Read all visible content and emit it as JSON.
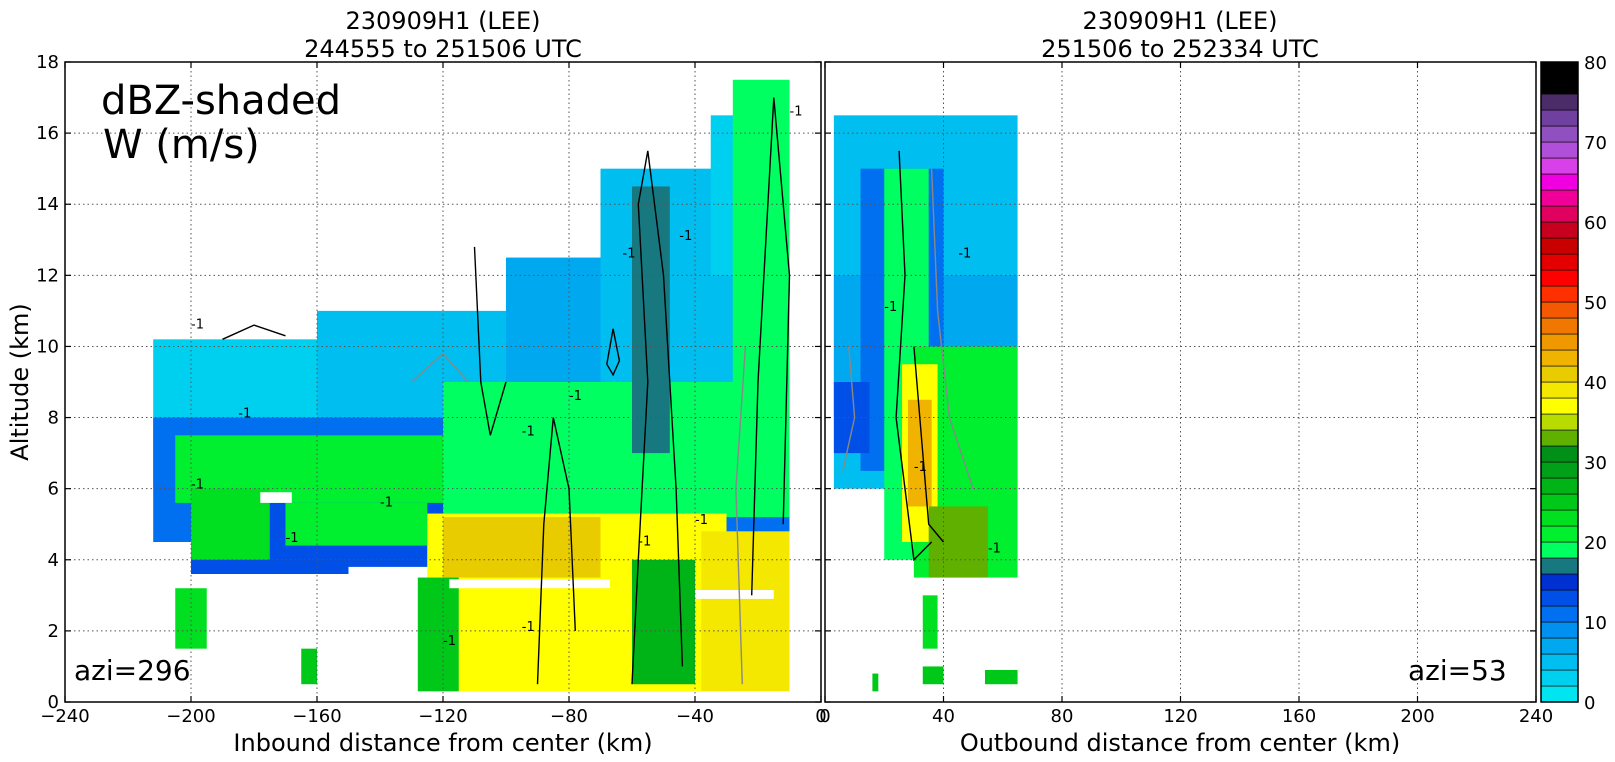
{
  "chart_data": [
    {
      "type": "heatmap",
      "title_line1": "230909H1 (LEE)",
      "title_line2": "244555 to 251506 UTC",
      "xlabel": "Inbound distance from center (km)",
      "ylabel": "Altitude (km)",
      "xlim": [
        -240,
        0
      ],
      "ylim": [
        0,
        18
      ],
      "xticks": [
        "−240",
        "−200",
        "−160",
        "−120",
        "−80",
        "−40",
        "0"
      ],
      "xtick_values": [
        -240,
        -200,
        -160,
        -120,
        -80,
        -40,
        0
      ],
      "yticks": [
        "0",
        "2",
        "4",
        "6",
        "8",
        "10",
        "12",
        "14",
        "16",
        "18"
      ],
      "ytick_values": [
        0,
        2,
        4,
        6,
        8,
        10,
        12,
        14,
        16,
        18
      ],
      "grid": true,
      "annotation_line1": "dBZ-shaded",
      "annotation_line2": "W (m/s)",
      "azimuth_label": "azi=296",
      "contour_label": "-1"
    },
    {
      "type": "heatmap",
      "title_line1": "230909H1 (LEE)",
      "title_line2": "251506 to 252334 UTC",
      "xlabel": "Outbound distance from center (km)",
      "xlim": [
        0,
        240
      ],
      "ylim": [
        0,
        18
      ],
      "xticks": [
        "0",
        "40",
        "80",
        "120",
        "160",
        "200",
        "240"
      ],
      "xtick_values": [
        0,
        40,
        80,
        120,
        160,
        200,
        240
      ],
      "grid": true,
      "azimuth_label": "azi=53",
      "contour_label": "-1"
    }
  ],
  "colorbar": {
    "min": 0,
    "max": 80,
    "step": 2,
    "tick_labels": [
      "0",
      "10",
      "20",
      "30",
      "40",
      "50",
      "60",
      "70",
      "80"
    ],
    "tick_values": [
      0,
      10,
      20,
      30,
      40,
      50,
      60,
      70,
      80
    ],
    "colors": [
      "#00e5f0",
      "#00d0f0",
      "#00bef0",
      "#00a8f0",
      "#0090f0",
      "#0070f0",
      "#0050e8",
      "#0030d0",
      "#187880",
      "#00ff60",
      "#00f030",
      "#00e020",
      "#00c818",
      "#00b418",
      "#00a018",
      "#009018",
      "#60b000",
      "#b8dc00",
      "#ffff00",
      "#f4e800",
      "#e8cc00",
      "#f0b400",
      "#f09800",
      "#f07800",
      "#f45800",
      "#ff3000",
      "#ff0000",
      "#e40000",
      "#c80000",
      "#c80020",
      "#e00060",
      "#f00098",
      "#f000e0",
      "#d840e8",
      "#b050d8",
      "#9050c0",
      "#7040a0",
      "#4c2c68",
      "#000000",
      "#000000"
    ]
  }
}
